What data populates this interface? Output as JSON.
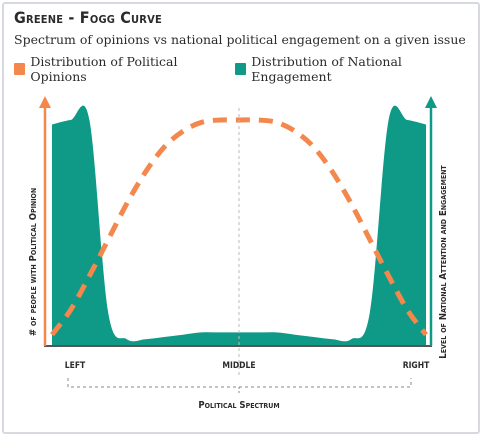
{
  "chart_data": {
    "type": "area",
    "title": "Greene - Fogg Curve",
    "subtitle": "Spectrum of opinions vs national political engagement on a given issue",
    "xlabel": "Political Spectrum",
    "ylabel_left": "# of people with Political Opinion",
    "ylabel_right": "Level of National Attention and Engagement",
    "categories": [
      "LEFT",
      "MIDDLE",
      "RIGHT"
    ],
    "x": [
      -1.0,
      -0.9,
      -0.8,
      -0.7,
      -0.6,
      -0.5,
      -0.4,
      -0.3,
      -0.2,
      -0.1,
      0.0,
      0.1,
      0.2,
      0.3,
      0.4,
      0.5,
      0.6,
      0.7,
      0.8,
      0.9,
      1.0
    ],
    "ylim": [
      0,
      1
    ],
    "series": [
      {
        "name": "Distribution of Political Opinions",
        "style": "dashed-line",
        "color": "#f4874b",
        "values": [
          0.05,
          0.16,
          0.31,
          0.47,
          0.63,
          0.77,
          0.88,
          0.95,
          0.99,
          1.0,
          1.0,
          1.0,
          0.99,
          0.95,
          0.88,
          0.77,
          0.63,
          0.47,
          0.31,
          0.16,
          0.05
        ]
      },
      {
        "name": "Distribution of National Engagement",
        "style": "filled-area",
        "color": "#0e9a87",
        "values": [
          0.98,
          1.0,
          1.0,
          0.15,
          0.03,
          0.03,
          0.04,
          0.05,
          0.06,
          0.06,
          0.06,
          0.06,
          0.06,
          0.05,
          0.04,
          0.03,
          0.03,
          0.15,
          1.0,
          1.0,
          0.98
        ]
      }
    ],
    "grid": false,
    "legend_position": "top-left",
    "colors": {
      "axis_left": "#f4874b",
      "axis_right": "#0e9a87",
      "axis_base": "#555555"
    }
  }
}
